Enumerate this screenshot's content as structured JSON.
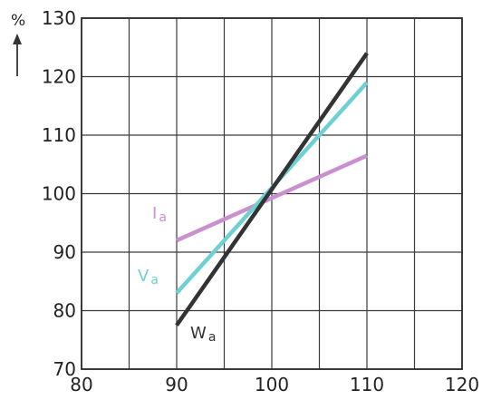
{
  "chart_data": {
    "type": "line",
    "title": "",
    "xlabel": "",
    "ylabel": "%",
    "xlim": [
      80,
      120
    ],
    "ylim": [
      70,
      130
    ],
    "x_ticks": [
      80,
      90,
      100,
      110,
      120
    ],
    "y_ticks": [
      70,
      80,
      90,
      100,
      110,
      120,
      130
    ],
    "grid": true,
    "series": [
      {
        "name": "Ia",
        "label_prefix": "I",
        "label_subscript": "a",
        "color": "#c98fcf",
        "x": [
          90,
          110
        ],
        "y": [
          92,
          106.5
        ]
      },
      {
        "name": "Va",
        "label_prefix": "V",
        "label_subscript": "a",
        "color": "#6fd0d4",
        "x": [
          90,
          110
        ],
        "y": [
          83,
          119
        ]
      },
      {
        "name": "Wa",
        "label_prefix": "W",
        "label_subscript": "a",
        "color": "#333333",
        "x": [
          90,
          110
        ],
        "y": [
          77.5,
          124
        ]
      }
    ]
  }
}
